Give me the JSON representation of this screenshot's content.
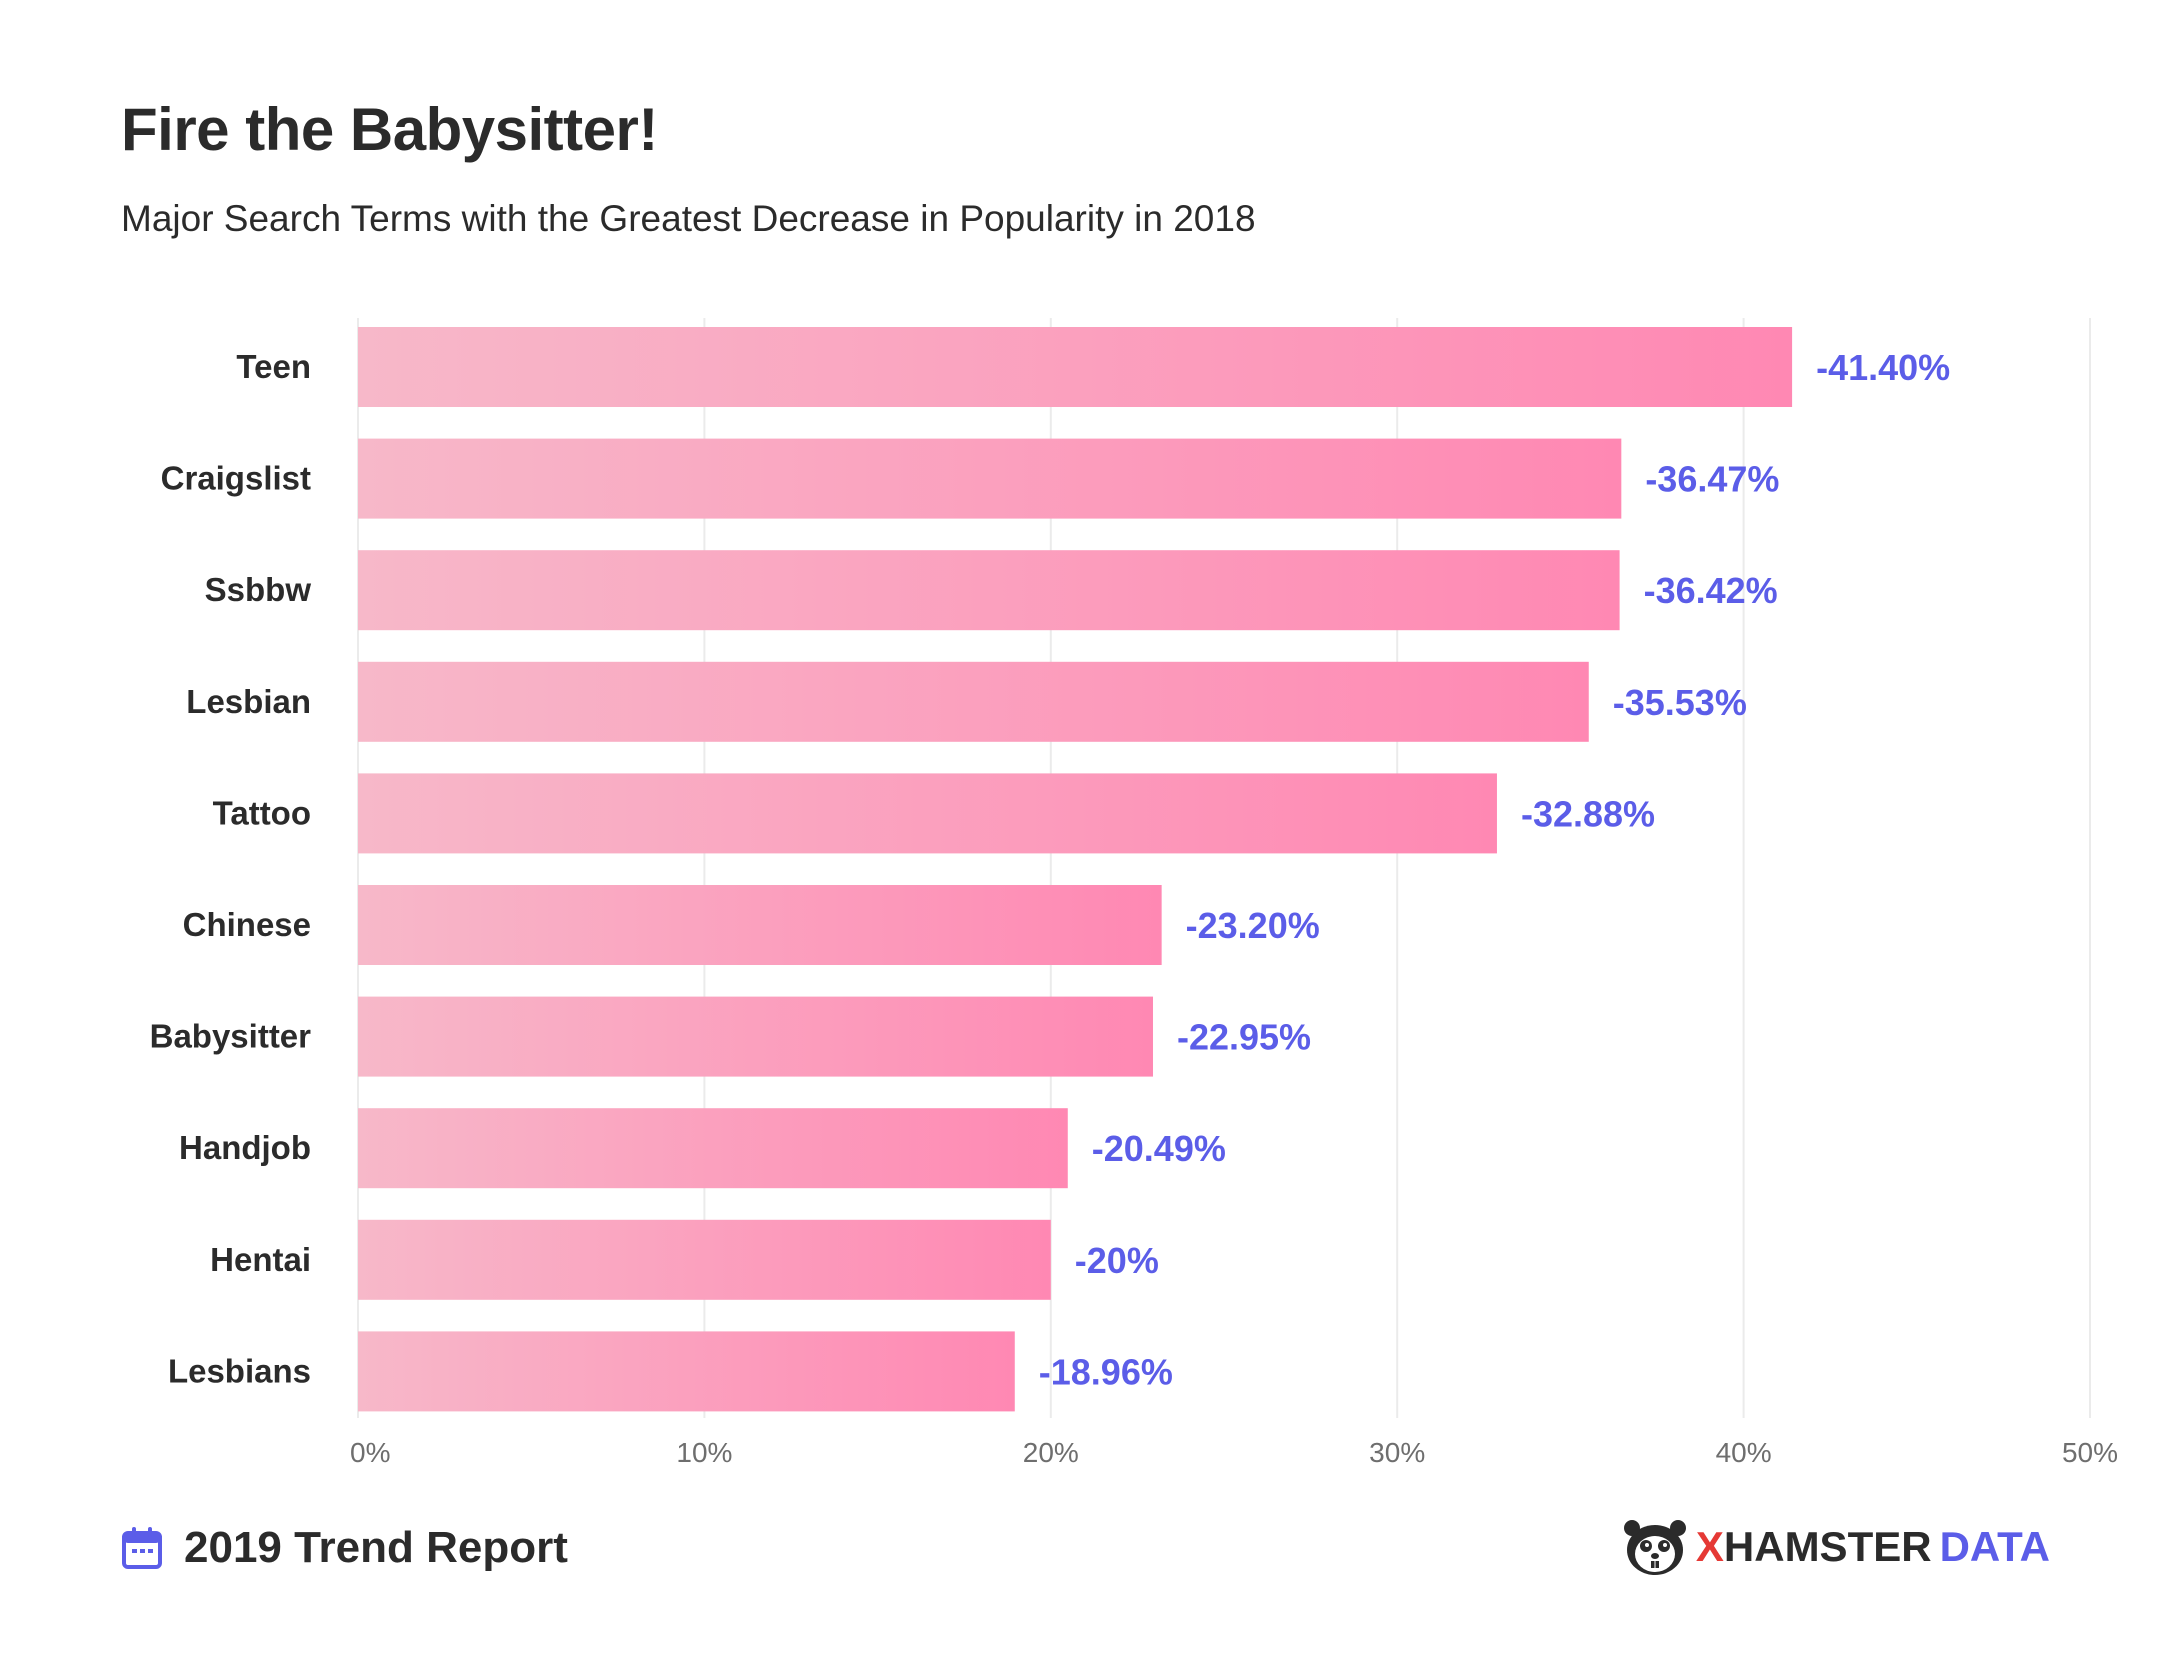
{
  "colors": {
    "bar_start": "#f7b8c9",
    "bar_end": "#ff88b3",
    "value_label": "#5b5de8",
    "grid": "#ebebeb",
    "brand_red": "#e53935",
    "brand_blue": "#5b5de8"
  },
  "footer": {
    "icon": "calendar-icon",
    "report_label": "2019 Trend Report",
    "brand_x": "X",
    "brand_hamster": "HAMSTER",
    "brand_data": "DATA",
    "brand_icon": "hamster-logo-icon"
  },
  "chart_data": {
    "type": "bar",
    "orientation": "horizontal",
    "title": "Fire the Babysitter!",
    "subtitle": "Major Search Terms with the Greatest Decrease in Popularity in 2018",
    "categories": [
      "Teen",
      "Craigslist",
      "Ssbbw",
      "Lesbian",
      "Tattoo",
      "Chinese",
      "Babysitter",
      "Handjob",
      "Hentai",
      "Lesbians"
    ],
    "values": [
      41.4,
      36.47,
      36.42,
      35.53,
      32.88,
      23.2,
      22.95,
      20.49,
      20,
      18.96
    ],
    "value_labels": [
      "-41.40%",
      "-36.47%",
      "-36.42%",
      "-35.53%",
      "-32.88%",
      "-23.20%",
      "-22.95%",
      "-20.49%",
      "-20%",
      "-18.96%"
    ],
    "xlim": [
      0,
      50
    ],
    "xticks": [
      0,
      10,
      20,
      30,
      40,
      50
    ],
    "xtick_labels": [
      "0%",
      "10%",
      "20%",
      "30%",
      "40%",
      "50%"
    ],
    "xlabel": "",
    "ylabel": "",
    "grid": true,
    "legend": "none"
  }
}
